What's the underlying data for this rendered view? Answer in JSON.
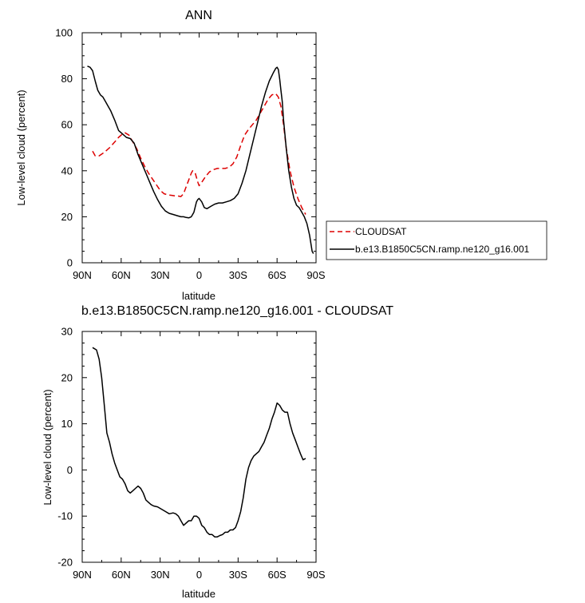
{
  "chart_data": [
    {
      "type": "line",
      "title": "ANN",
      "xlabel": "latitude",
      "ylabel": "Low-level cloud (percent)",
      "xlim": [
        90,
        -90
      ],
      "ylim": [
        0,
        100
      ],
      "x_ticks": [
        90,
        60,
        30,
        0,
        -30,
        -60,
        -90
      ],
      "x_tick_labels": [
        "90N",
        "60N",
        "30N",
        "0",
        "30S",
        "60S",
        "90S"
      ],
      "y_ticks": [
        0,
        20,
        40,
        60,
        80,
        100
      ],
      "y_tick_labels": [
        "0",
        "20",
        "40",
        "60",
        "80",
        "100"
      ],
      "grid": false,
      "legend_position": "right",
      "series": [
        {
          "name": "CLOUDSAT",
          "color": "#dd0000",
          "dash": "dashed",
          "x": [
            82,
            80,
            77,
            73,
            69,
            65,
            62,
            59,
            57,
            54,
            51,
            48,
            45,
            42,
            39,
            36,
            33,
            30,
            27,
            24,
            21,
            18,
            16,
            14,
            12,
            10,
            8,
            6,
            5,
            3,
            1,
            0,
            -2,
            -5,
            -8,
            -11,
            -14,
            -17,
            -20,
            -23,
            -26,
            -29,
            -32,
            -35,
            -38,
            -41,
            -44,
            -47,
            -50,
            -53,
            -56,
            -59,
            -61,
            -63,
            -65,
            -67,
            -70,
            -73,
            -76,
            -79,
            -82
          ],
          "y": [
            48.5,
            46.5,
            46.5,
            48,
            50,
            52.5,
            54.5,
            56,
            56.5,
            55.5,
            52.5,
            49.5,
            45.5,
            42,
            39,
            36.5,
            34,
            31.5,
            30,
            29.5,
            29.3,
            29,
            29,
            28.8,
            30,
            33,
            36,
            39,
            40,
            39,
            35,
            33.5,
            35,
            37.5,
            39.5,
            40.5,
            41,
            41,
            41,
            41.5,
            43,
            46,
            51,
            55.5,
            58,
            60,
            62,
            65,
            68,
            71,
            73,
            73.5,
            72,
            68,
            60,
            50,
            40,
            33,
            28,
            24,
            21
          ]
        },
        {
          "name": "b.e13.B1850C5CN.ramp.ne120_g16.001",
          "color": "#000000",
          "dash": "solid",
          "x": [
            86,
            84,
            82,
            80,
            78,
            76,
            74,
            72,
            70,
            68,
            65,
            62,
            59,
            56,
            53,
            50,
            47,
            44,
            41,
            38,
            35,
            32,
            29,
            26,
            23,
            20,
            17,
            14,
            12,
            10,
            8,
            6,
            5,
            4,
            2,
            1,
            0,
            -2,
            -4,
            -6,
            -9,
            -12,
            -15,
            -18,
            -21,
            -24,
            -27,
            -30,
            -33,
            -36,
            -39,
            -42,
            -45,
            -48,
            -51,
            -54,
            -57,
            -59,
            -60,
            -61,
            -62,
            -63,
            -64,
            -65,
            -67,
            -69,
            -71,
            -73,
            -75,
            -77,
            -79,
            -81,
            -83,
            -85,
            -87,
            -88
          ],
          "y": [
            85.5,
            85,
            83.5,
            79,
            75,
            73,
            72,
            70,
            68,
            66,
            62,
            57.5,
            56,
            54.5,
            54,
            52,
            47,
            43,
            39,
            35,
            31,
            27.5,
            24.5,
            22.5,
            21.5,
            21,
            20.5,
            20,
            20,
            19.7,
            19.5,
            20,
            21,
            22,
            26.5,
            27.5,
            28,
            26.5,
            24,
            23.5,
            24.5,
            25.5,
            26,
            26,
            26.5,
            27,
            28,
            30,
            34.5,
            40,
            47,
            54,
            61,
            68,
            74,
            79,
            82.5,
            84.5,
            85,
            84,
            80,
            75,
            70,
            62,
            50,
            40,
            33,
            28,
            25,
            24,
            22,
            20,
            17,
            12,
            5,
            4
          ]
        }
      ]
    },
    {
      "type": "line",
      "title": "b.e13.B1850C5CN.ramp.ne120_g16.001 - CLOUDSAT",
      "xlabel": "latitude",
      "ylabel": "Low-level cloud (percent)",
      "xlim": [
        90,
        -90
      ],
      "ylim": [
        -20,
        30
      ],
      "x_ticks": [
        90,
        60,
        30,
        0,
        -30,
        -60,
        -90
      ],
      "x_tick_labels": [
        "90N",
        "60N",
        "30N",
        "0",
        "30S",
        "60S",
        "90S"
      ],
      "y_ticks": [
        -20,
        -10,
        0,
        10,
        20,
        30
      ],
      "y_tick_labels": [
        "-20",
        "-10",
        "0",
        "10",
        "20",
        "30"
      ],
      "grid": false,
      "series": [
        {
          "color": "#000000",
          "dash": "solid",
          "x": [
            82,
            79,
            77,
            75,
            73,
            71,
            69,
            67,
            65,
            63,
            61,
            59,
            57,
            55,
            53,
            51,
            49,
            47,
            45,
            43,
            41,
            39,
            37,
            35,
            32,
            29,
            26,
            23,
            20,
            18,
            16,
            14,
            12,
            10,
            8,
            6,
            4,
            2,
            0,
            -2,
            -4,
            -6,
            -8,
            -10,
            -12,
            -14,
            -16,
            -18,
            -20,
            -22,
            -24,
            -26,
            -28,
            -30,
            -32,
            -34,
            -36,
            -38,
            -40,
            -42,
            -44,
            -46,
            -48,
            -50,
            -52,
            -54,
            -56,
            -58,
            -60,
            -62,
            -64,
            -66,
            -68,
            -70,
            -72,
            -74,
            -76,
            -78,
            -80,
            -82
          ],
          "y": [
            26.5,
            26,
            24,
            20,
            14,
            8,
            6,
            3.5,
            1.5,
            0,
            -1.5,
            -2,
            -3,
            -4.5,
            -5,
            -4.5,
            -4,
            -3.5,
            -4,
            -5,
            -6.5,
            -7,
            -7.5,
            -7.8,
            -8,
            -8.5,
            -9,
            -9.5,
            -9.3,
            -9.5,
            -10,
            -11,
            -12,
            -11.5,
            -11,
            -11,
            -10,
            -10,
            -10.5,
            -12,
            -12.5,
            -13.5,
            -14,
            -14,
            -14.5,
            -14.5,
            -14.2,
            -14,
            -13.5,
            -13.5,
            -13,
            -13,
            -12.5,
            -11,
            -9,
            -6,
            -2,
            0.5,
            2,
            3,
            3.5,
            4,
            5,
            6,
            7.5,
            9,
            11,
            12.5,
            14.5,
            14,
            13,
            12.5,
            12.5,
            10,
            8,
            6.5,
            5,
            3.5,
            2.2,
            2.5
          ]
        }
      ]
    }
  ]
}
